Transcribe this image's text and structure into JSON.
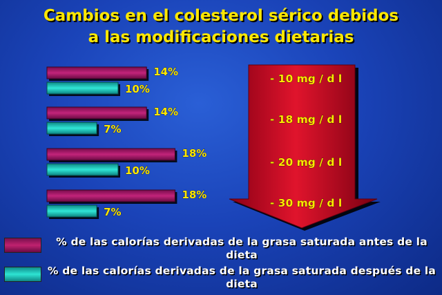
{
  "title_line1": "Cambios en el colesterol sérico debidos",
  "title_line2": "a las modificaciones dietarias",
  "colors": {
    "title": "#ffe800",
    "before_bar": "#b0206a",
    "after_bar": "#28d8cc",
    "arrow": "#d4102a",
    "label_yellow": "#ffe800",
    "background": "#1a43b8"
  },
  "chart_data": {
    "type": "bar",
    "orientation": "horizontal",
    "categories": [
      "1",
      "2",
      "3",
      "4"
    ],
    "series": [
      {
        "name": "% de las calorías derivadas de la grasa saturada antes de la dieta",
        "values": [
          14,
          14,
          18,
          18
        ]
      },
      {
        "name": "% de las calorías derivadas de la grasa saturada después de la dieta",
        "values": [
          10,
          7,
          10,
          7
        ]
      }
    ],
    "value_labels_before": [
      "14%",
      "14%",
      "18%",
      "18%"
    ],
    "value_labels_after": [
      "10%",
      "7%",
      "10%",
      "7%"
    ],
    "cholesterol_change_labels": [
      "- 10 mg / d l",
      "- 18 mg / d l",
      "- 20 mg / d l",
      "- 30 mg / d l"
    ],
    "legend_placement": "bottom"
  },
  "legend": {
    "before": "% de las calorías derivadas de la grasa saturada antes de la dieta",
    "after": "% de las calorías derivadas de la grasa saturada después de la dieta"
  }
}
